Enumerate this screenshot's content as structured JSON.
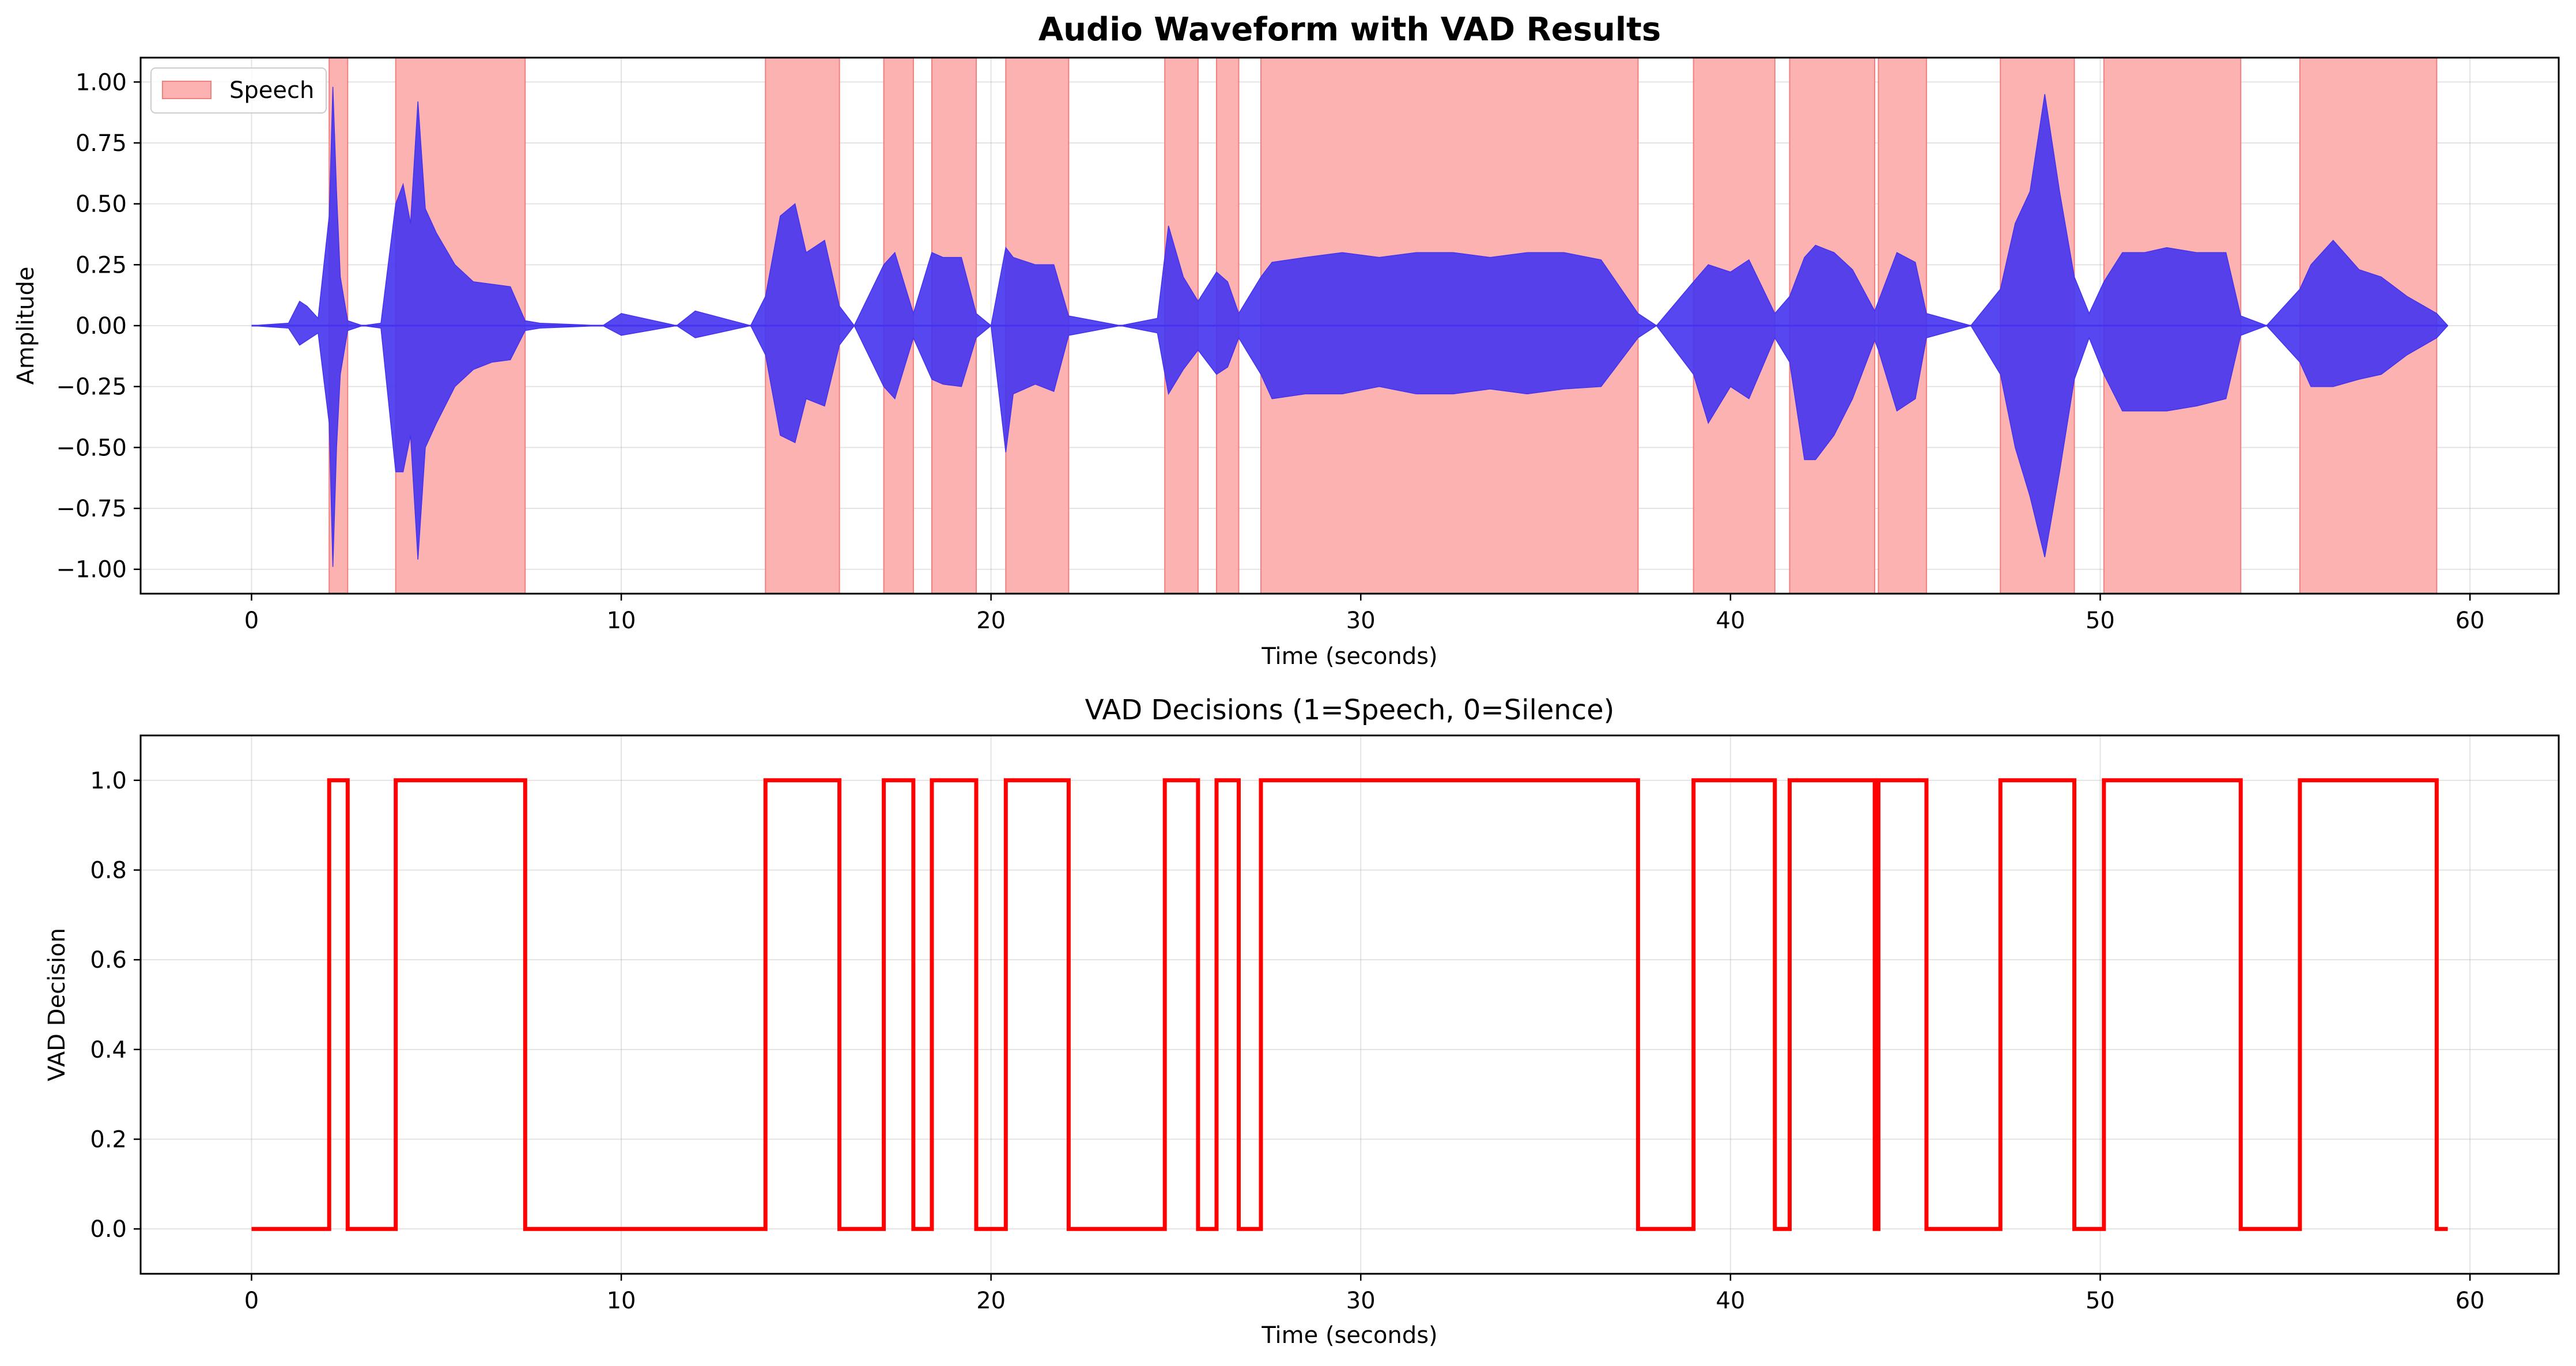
{
  "chart_data": [
    {
      "type": "area",
      "title": "Audio Waveform with VAD Results",
      "xlabel": "Time (seconds)",
      "ylabel": "Amplitude",
      "xlim": [
        -3.0,
        62.4
      ],
      "ylim": [
        -1.1,
        1.1
      ],
      "xticks": [
        0,
        10,
        20,
        30,
        40,
        50,
        60
      ],
      "xtick_labels": [
        "0",
        "10",
        "20",
        "30",
        "40",
        "50",
        "60"
      ],
      "yticks": [
        1.0,
        0.75,
        0.5,
        0.25,
        0.0,
        -0.25,
        -0.5,
        -0.75,
        -1.0
      ],
      "ytick_labels": [
        "1.00",
        "0.75",
        "0.50",
        "0.25",
        "0.00",
        "−0.25",
        "−0.50",
        "−0.75",
        "−1.00"
      ],
      "grid": true,
      "legend": {
        "position": "upper-left",
        "entries": [
          {
            "label": "Speech",
            "color": "#fdb2b2"
          }
        ]
      },
      "series": [
        {
          "name": "Speech",
          "kind": "shaded-intervals",
          "color": "#fdb2b2",
          "intervals": [
            [
              2.1,
              2.6
            ],
            [
              3.9,
              7.4
            ],
            [
              13.9,
              15.9
            ],
            [
              17.1,
              17.9
            ],
            [
              18.4,
              19.6
            ],
            [
              20.4,
              22.1
            ],
            [
              24.7,
              25.6
            ],
            [
              26.1,
              26.7
            ],
            [
              27.3,
              37.5
            ],
            [
              39.0,
              41.2
            ],
            [
              41.6,
              43.9
            ],
            [
              44.0,
              45.3
            ],
            [
              47.3,
              49.3
            ],
            [
              50.1,
              53.8
            ],
            [
              55.4,
              59.1
            ]
          ]
        },
        {
          "kind": "waveform-envelope",
          "color": "#4433ee",
          "x": [
            0.0,
            1.0,
            1.3,
            1.5,
            1.8,
            2.1,
            2.2,
            2.3,
            2.4,
            2.6,
            3.0,
            3.5,
            3.9,
            4.1,
            4.3,
            4.5,
            4.7,
            5.0,
            5.5,
            6.0,
            6.5,
            7.0,
            7.4,
            7.8,
            9.5,
            10.0,
            11.5,
            12.0,
            13.5,
            13.9,
            14.3,
            14.7,
            15.0,
            15.5,
            15.9,
            16.3,
            17.1,
            17.4,
            17.9,
            18.4,
            18.7,
            19.2,
            19.6,
            20.0,
            20.4,
            20.6,
            21.2,
            21.7,
            22.1,
            23.5,
            24.5,
            24.8,
            25.2,
            25.6,
            26.1,
            26.4,
            26.7,
            27.3,
            27.6,
            28.5,
            29.5,
            30.5,
            31.5,
            32.5,
            33.5,
            34.5,
            35.5,
            36.5,
            37.5,
            38.0,
            39.0,
            39.4,
            40.0,
            40.5,
            41.2,
            41.6,
            42.0,
            42.3,
            42.8,
            43.3,
            43.9,
            44.0,
            44.5,
            45.0,
            45.3,
            46.5,
            47.3,
            47.7,
            48.1,
            48.5,
            48.9,
            49.3,
            49.7,
            50.1,
            50.6,
            51.2,
            51.8,
            52.6,
            53.4,
            53.8,
            54.5,
            55.4,
            55.7,
            56.3,
            57.0,
            57.6,
            58.3,
            59.1,
            59.4
          ],
          "upper": [
            0.0,
            0.01,
            0.1,
            0.08,
            0.03,
            0.45,
            0.98,
            0.55,
            0.2,
            0.02,
            0.0,
            0.01,
            0.5,
            0.58,
            0.42,
            0.92,
            0.48,
            0.38,
            0.25,
            0.18,
            0.17,
            0.16,
            0.02,
            0.01,
            0.0,
            0.05,
            0.0,
            0.06,
            0.0,
            0.12,
            0.45,
            0.5,
            0.3,
            0.35,
            0.08,
            0.0,
            0.25,
            0.3,
            0.05,
            0.3,
            0.28,
            0.28,
            0.05,
            0.0,
            0.32,
            0.28,
            0.25,
            0.25,
            0.04,
            0.0,
            0.03,
            0.41,
            0.2,
            0.1,
            0.22,
            0.18,
            0.05,
            0.2,
            0.26,
            0.28,
            0.3,
            0.28,
            0.3,
            0.3,
            0.28,
            0.3,
            0.3,
            0.27,
            0.05,
            0.0,
            0.18,
            0.25,
            0.22,
            0.27,
            0.05,
            0.12,
            0.28,
            0.33,
            0.3,
            0.23,
            0.06,
            0.1,
            0.3,
            0.26,
            0.05,
            0.0,
            0.15,
            0.42,
            0.55,
            0.95,
            0.55,
            0.2,
            0.05,
            0.18,
            0.3,
            0.3,
            0.32,
            0.3,
            0.3,
            0.04,
            0.0,
            0.15,
            0.25,
            0.35,
            0.23,
            0.2,
            0.12,
            0.05,
            0.0
          ],
          "lower": [
            0.0,
            -0.01,
            -0.08,
            -0.06,
            -0.03,
            -0.4,
            -0.99,
            -0.5,
            -0.2,
            -0.02,
            0.0,
            -0.01,
            -0.6,
            -0.6,
            -0.45,
            -0.96,
            -0.5,
            -0.4,
            -0.25,
            -0.18,
            -0.15,
            -0.14,
            -0.02,
            -0.01,
            0.0,
            -0.04,
            0.0,
            -0.05,
            0.0,
            -0.12,
            -0.45,
            -0.48,
            -0.3,
            -0.33,
            -0.08,
            0.0,
            -0.25,
            -0.3,
            -0.05,
            -0.22,
            -0.24,
            -0.25,
            -0.05,
            0.0,
            -0.52,
            -0.28,
            -0.24,
            -0.27,
            -0.04,
            0.0,
            -0.03,
            -0.28,
            -0.18,
            -0.1,
            -0.2,
            -0.17,
            -0.05,
            -0.2,
            -0.3,
            -0.28,
            -0.28,
            -0.25,
            -0.28,
            -0.28,
            -0.26,
            -0.28,
            -0.26,
            -0.25,
            -0.05,
            0.0,
            -0.2,
            -0.4,
            -0.25,
            -0.3,
            -0.05,
            -0.15,
            -0.55,
            -0.55,
            -0.45,
            -0.3,
            -0.06,
            -0.1,
            -0.35,
            -0.3,
            -0.05,
            0.0,
            -0.2,
            -0.5,
            -0.7,
            -0.95,
            -0.6,
            -0.22,
            -0.05,
            -0.2,
            -0.35,
            -0.35,
            -0.35,
            -0.33,
            -0.3,
            -0.04,
            0.0,
            -0.15,
            -0.25,
            -0.25,
            -0.22,
            -0.2,
            -0.12,
            -0.05,
            0.0
          ]
        }
      ]
    },
    {
      "type": "line",
      "title": "VAD Decisions (1=Speech, 0=Silence)",
      "xlabel": "Time (seconds)",
      "ylabel": "VAD Decision",
      "xlim": [
        -3.0,
        62.4
      ],
      "ylim": [
        -0.1,
        1.1
      ],
      "xticks": [
        0,
        10,
        20,
        30,
        40,
        50,
        60
      ],
      "xtick_labels": [
        "0",
        "10",
        "20",
        "30",
        "40",
        "50",
        "60"
      ],
      "yticks": [
        0.0,
        0.2,
        0.4,
        0.6,
        0.8,
        1.0
      ],
      "ytick_labels": [
        "0.0",
        "0.2",
        "0.4",
        "0.6",
        "0.8",
        "1.0"
      ],
      "grid": true,
      "series": [
        {
          "color": "#ff0000",
          "step_x": [
            0.0,
            2.1,
            2.6,
            3.9,
            7.4,
            13.9,
            15.9,
            17.1,
            17.9,
            18.4,
            19.6,
            20.4,
            22.1,
            24.7,
            25.6,
            26.1,
            26.7,
            27.3,
            37.5,
            39.0,
            41.2,
            41.6,
            43.9,
            44.0,
            45.3,
            47.3,
            49.3,
            50.1,
            53.8,
            55.4,
            59.1,
            59.4
          ],
          "step_y": [
            0,
            1,
            0,
            1,
            0,
            1,
            0,
            1,
            0,
            1,
            0,
            1,
            0,
            1,
            0,
            1,
            0,
            1,
            0,
            1,
            0,
            1,
            0,
            1,
            0,
            1,
            0,
            1,
            0,
            1,
            0,
            0
          ]
        }
      ]
    }
  ]
}
